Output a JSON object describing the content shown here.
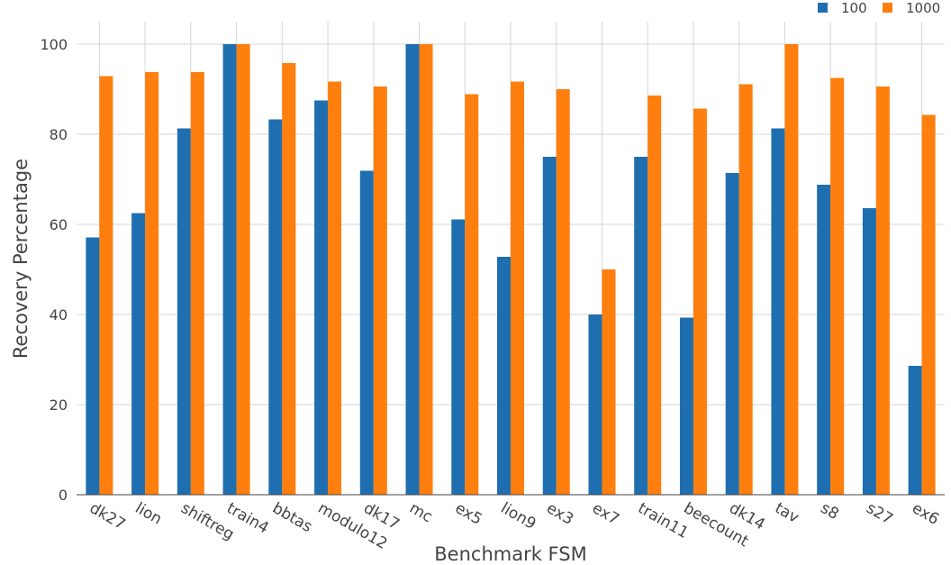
{
  "chart_data": {
    "type": "bar",
    "title": "",
    "xlabel": "Benchmark FSM",
    "ylabel": "Recovery Percentage",
    "ylim": [
      0,
      105
    ],
    "yticks": [
      0,
      20,
      40,
      60,
      80,
      100
    ],
    "grid": true,
    "legend_position": "top-right",
    "categories": [
      "dk27",
      "lion",
      "shiftreg",
      "train4",
      "bbtas",
      "modulo12",
      "dk17",
      "mc",
      "ex5",
      "lion9",
      "ex3",
      "ex7",
      "train11",
      "beecount",
      "dk14",
      "tav",
      "s8",
      "s27",
      "ex6"
    ],
    "series": [
      {
        "name": "100",
        "color": "#1f6fb0",
        "values": [
          57.1,
          62.5,
          81.3,
          100,
          83.3,
          87.5,
          71.9,
          100,
          61.1,
          52.8,
          75.0,
          40.0,
          75.0,
          39.3,
          71.4,
          81.3,
          68.8,
          63.6,
          28.6
        ]
      },
      {
        "name": "1000",
        "color": "#ff7f0e",
        "values": [
          92.9,
          93.8,
          93.8,
          100,
          95.8,
          91.7,
          90.6,
          100,
          88.9,
          91.7,
          90.0,
          50.0,
          88.6,
          85.7,
          91.1,
          100,
          92.5,
          90.6,
          84.3
        ]
      }
    ]
  }
}
